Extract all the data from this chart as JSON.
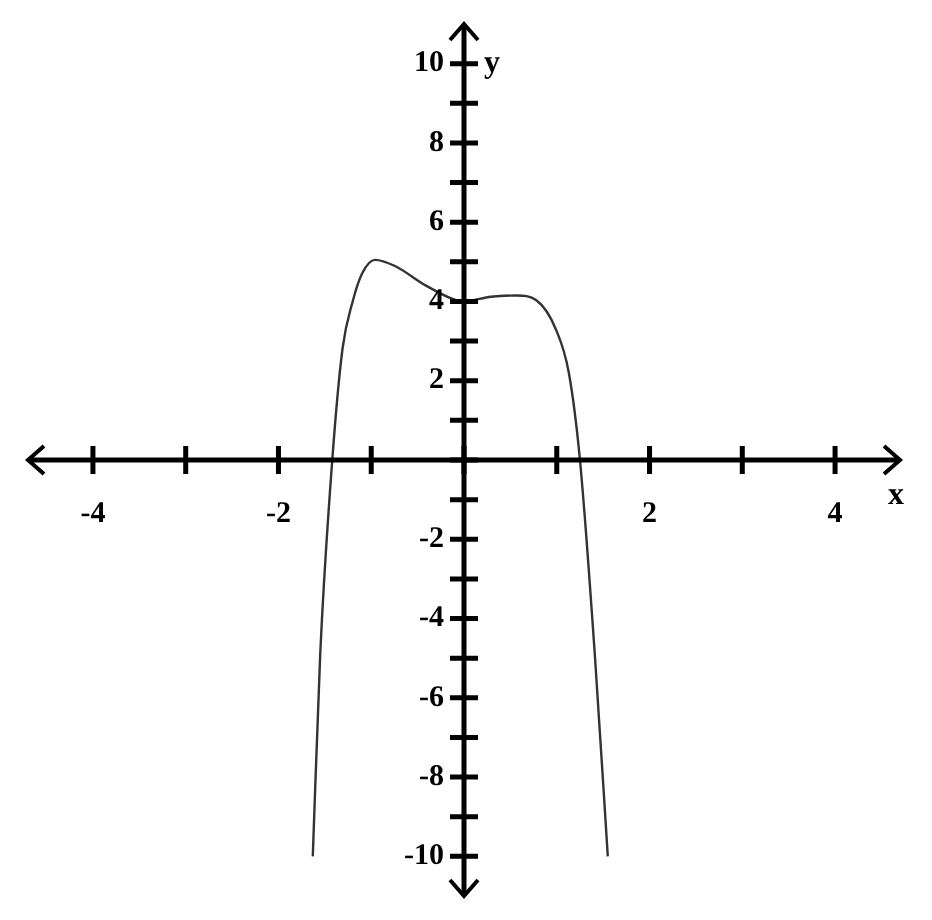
{
  "chart_data": {
    "type": "line",
    "xlabel": "x",
    "ylabel": "y",
    "marker": "none",
    "x": [
      -1.63,
      -1.55,
      -1.42,
      -1.31,
      -1.2,
      -1.1,
      -0.96,
      -0.75,
      -0.41,
      -0.13,
      0,
      0.29,
      0.57,
      0.78,
      0.99,
      1.13,
      1.25,
      1.41,
      1.55
    ],
    "series": [
      {
        "color": "#333333",
        "values": [
          -10,
          -4.9,
          0,
          2.8,
          4,
          4.7,
          5.05,
          4.9,
          4.4,
          4.07,
          4,
          4.12,
          4.15,
          4.03,
          3.3,
          2.2,
          0,
          -4.9,
          -10
        ]
      }
    ],
    "xlim": [
      -4.7,
      4.7
    ],
    "ylim": [
      -11,
      11
    ],
    "xticks": [
      {
        "value": -4,
        "label": "-4"
      },
      {
        "value": -3,
        "label": null
      },
      {
        "value": -2,
        "label": "-2"
      },
      {
        "value": -1,
        "label": null
      },
      {
        "value": 0,
        "label": null
      },
      {
        "value": 1,
        "label": null
      },
      {
        "value": 2,
        "label": "2"
      },
      {
        "value": 3,
        "label": null
      },
      {
        "value": 4,
        "label": "4"
      }
    ],
    "yticks": [
      {
        "value": -10,
        "label": "-10"
      },
      {
        "value": -9,
        "label": null
      },
      {
        "value": -8,
        "label": "-8"
      },
      {
        "value": -7,
        "label": null
      },
      {
        "value": -6,
        "label": "-6"
      },
      {
        "value": -5,
        "label": null
      },
      {
        "value": -4,
        "label": "-4"
      },
      {
        "value": -3,
        "label": null
      },
      {
        "value": -2,
        "label": "-2"
      },
      {
        "value": -1,
        "label": null
      },
      {
        "value": 0,
        "label": null
      },
      {
        "value": 1,
        "label": null
      },
      {
        "value": 2,
        "label": "2"
      },
      {
        "value": 3,
        "label": null
      },
      {
        "value": 4,
        "label": "4"
      },
      {
        "value": 5,
        "label": null
      },
      {
        "value": 6,
        "label": "6"
      },
      {
        "value": 7,
        "label": null
      },
      {
        "value": 8,
        "label": "8"
      },
      {
        "value": 9,
        "label": null
      },
      {
        "value": 10,
        "label": "10"
      }
    ]
  }
}
